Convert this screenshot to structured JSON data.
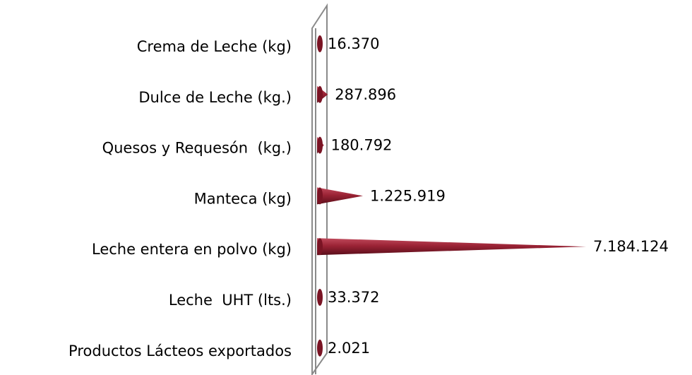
{
  "chart_data": {
    "type": "cone-bar",
    "categories": [
      "Crema de Leche (kg)",
      "Dulce de Leche (kg.)",
      "Quesos y Requesón  (kg.)",
      "Manteca (kg)",
      "Leche entera en polvo (kg)",
      "Leche  UHT (lts.)",
      "Productos Lácteos exportados"
    ],
    "values": [
      16370,
      287896,
      180792,
      1225919,
      7184124,
      33372,
      2021
    ],
    "value_labels": [
      "16.370",
      "287.896",
      "180.792",
      "1.225.919",
      "7.184.124",
      "33.372",
      "2.021"
    ],
    "color": "#9b2335"
  }
}
